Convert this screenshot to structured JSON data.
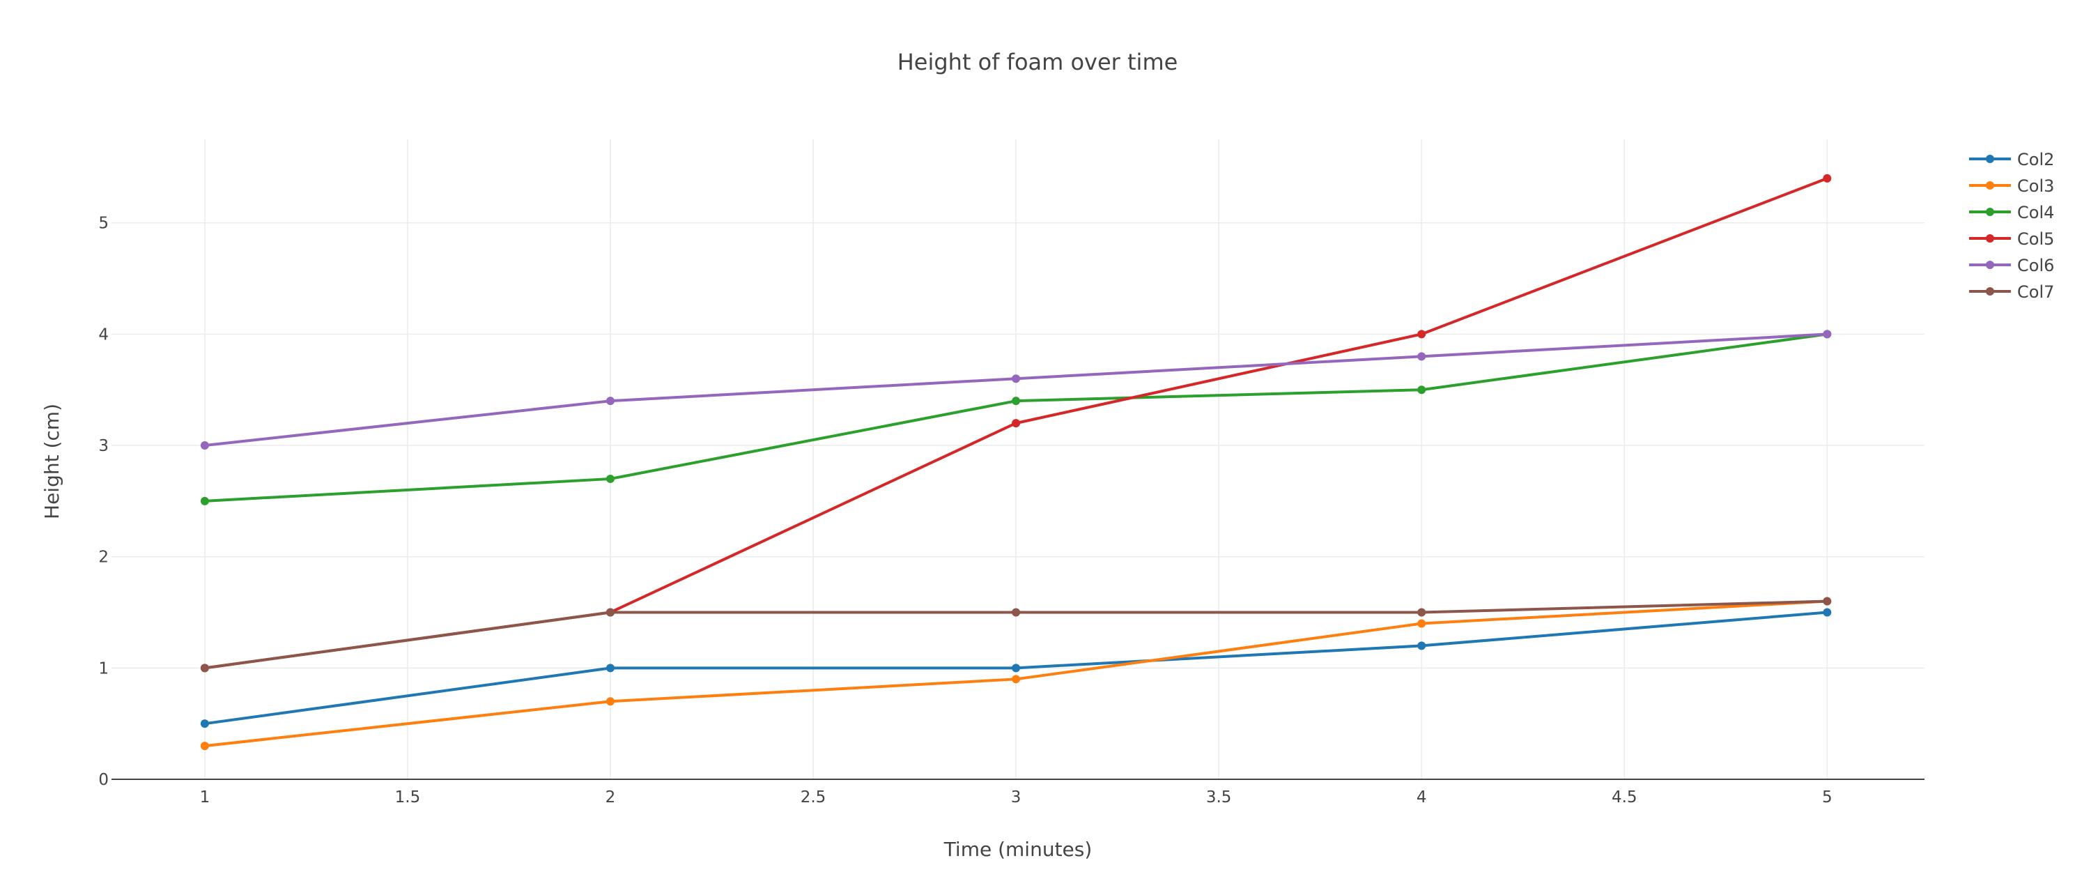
{
  "chart_data": {
    "type": "line",
    "title": "Height of foam over time",
    "xlabel": "Time (minutes)",
    "ylabel": "Height (cm)",
    "xlim": [
      0.77,
      5.24
    ],
    "ylim": [
      0,
      5.75
    ],
    "x_ticks": [
      "1",
      "1.5",
      "2",
      "2.5",
      "3",
      "3.5",
      "4",
      "4.5",
      "5"
    ],
    "y_ticks": [
      "0",
      "1",
      "2",
      "3",
      "4",
      "5"
    ],
    "grid": true,
    "legend_position": "top-right",
    "x": [
      1,
      2,
      3,
      4,
      5
    ],
    "series": [
      {
        "name": "Col2",
        "color": "#1f77b4",
        "values": [
          0.5,
          1.0,
          1.0,
          1.2,
          1.5
        ]
      },
      {
        "name": "Col3",
        "color": "#ff7f0e",
        "values": [
          0.3,
          0.7,
          0.9,
          1.4,
          1.6
        ]
      },
      {
        "name": "Col4",
        "color": "#2ca02c",
        "values": [
          2.5,
          2.7,
          3.4,
          3.5,
          4.0
        ]
      },
      {
        "name": "Col5",
        "color": "#d62728",
        "values": [
          1.0,
          1.5,
          3.2,
          4.0,
          5.4
        ]
      },
      {
        "name": "Col6",
        "color": "#9467bd",
        "values": [
          3.0,
          3.4,
          3.6,
          3.8,
          4.0
        ]
      },
      {
        "name": "Col7",
        "color": "#8c564b",
        "values": [
          1.0,
          1.5,
          1.5,
          1.5,
          1.6
        ]
      }
    ]
  }
}
